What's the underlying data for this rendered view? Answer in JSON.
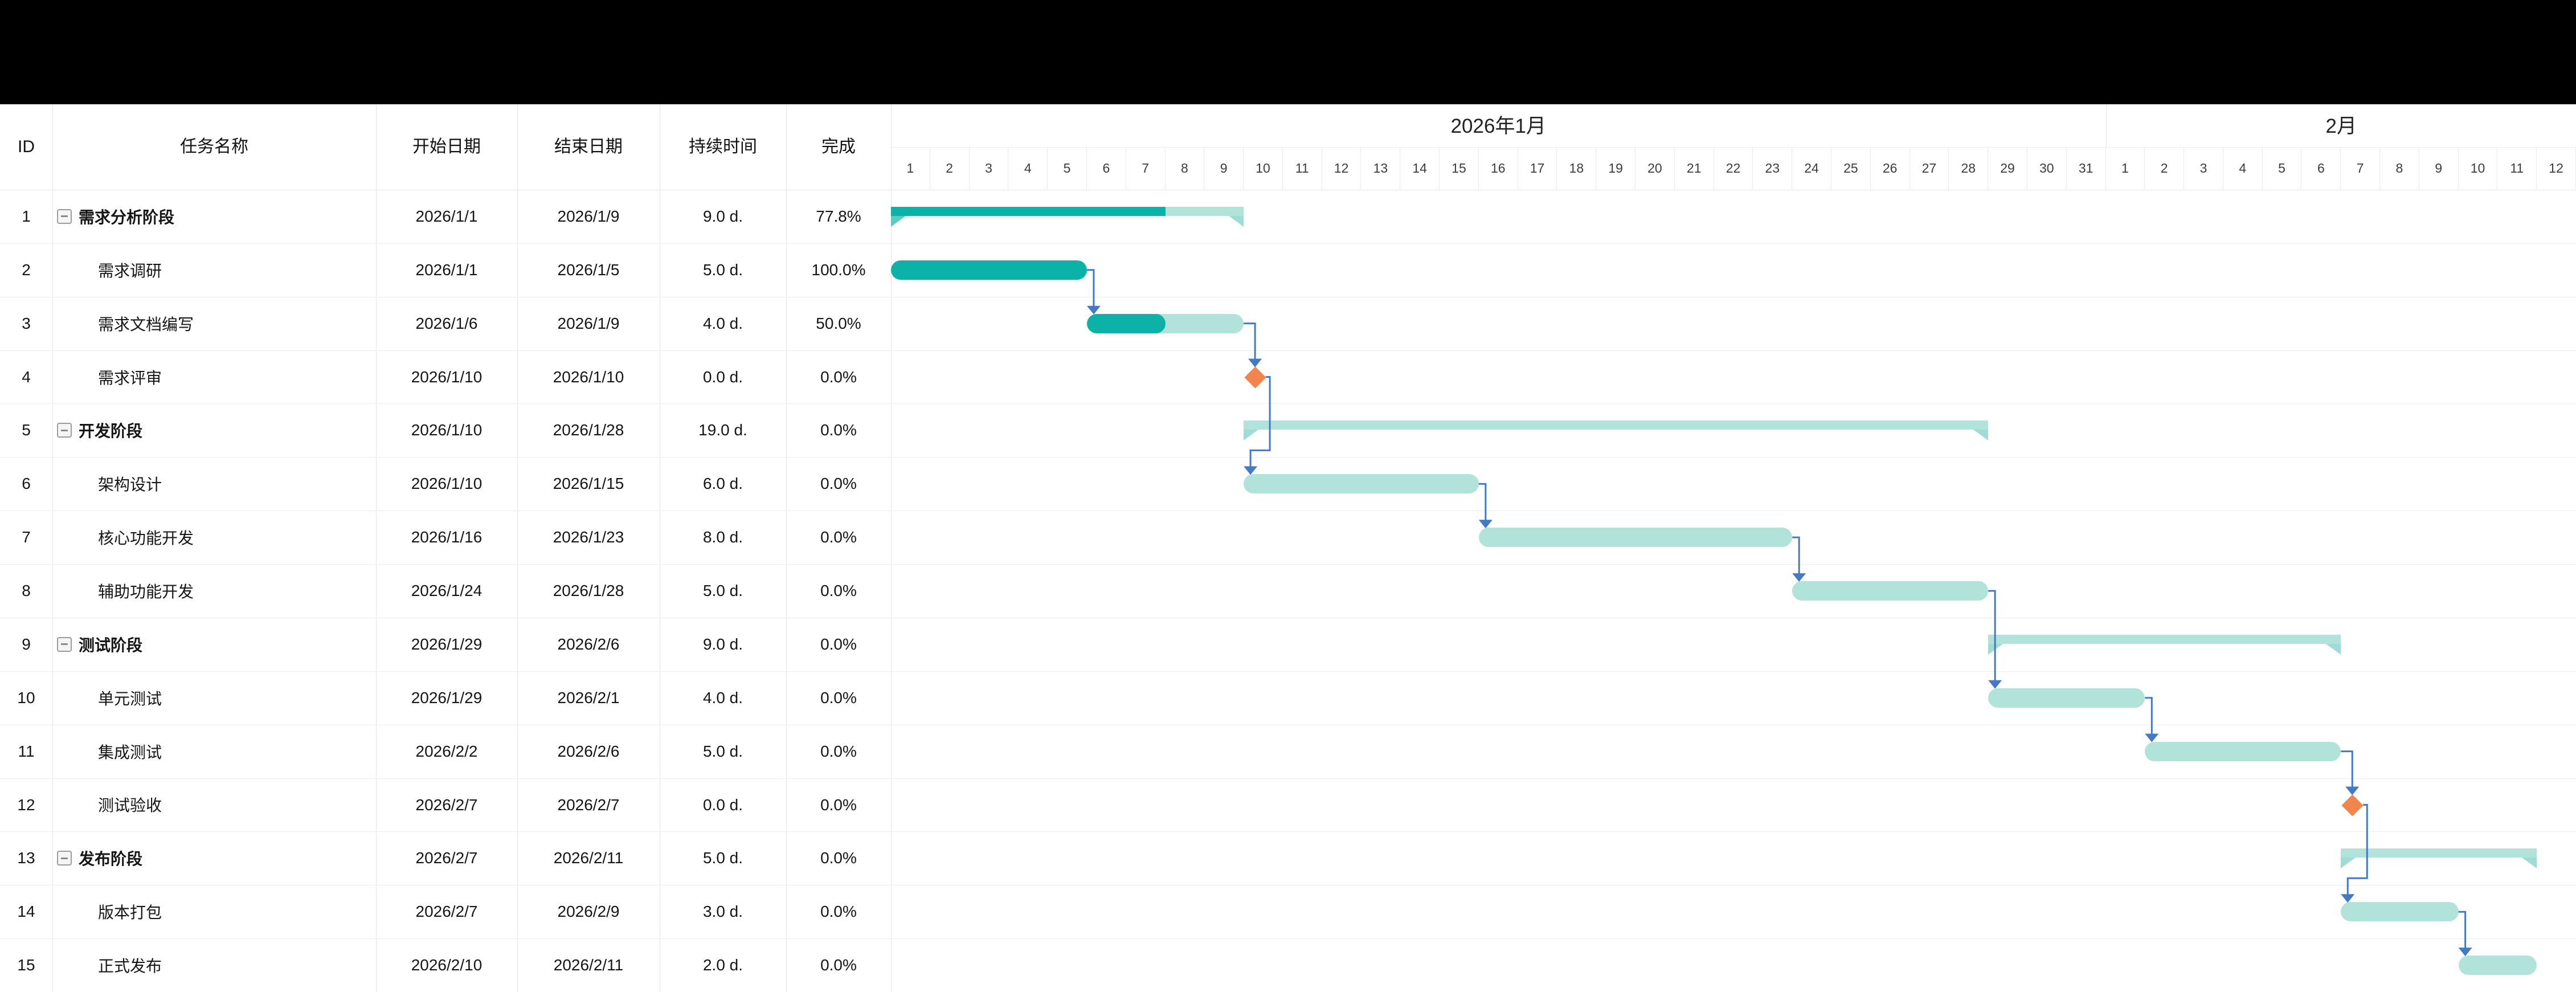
{
  "window": {
    "top_band": ""
  },
  "colors": {
    "band": "#000000",
    "task_fill": "#B2E3DB",
    "task_progress": "#0CB2A7",
    "summary_hang": "#9FDCD5",
    "summary_hang_done": "#5ECAC1",
    "milestone": "#F2854D",
    "connector": "#4479C4",
    "grid": "#ededed",
    "grid_col": "#e4e4e4"
  },
  "table": {
    "columns": [
      {
        "key": "id",
        "label": "ID"
      },
      {
        "key": "name",
        "label": "任务名称"
      },
      {
        "key": "start",
        "label": "开始日期"
      },
      {
        "key": "end",
        "label": "结束日期"
      },
      {
        "key": "duration",
        "label": "持续时间"
      },
      {
        "key": "percent",
        "label": "完成"
      }
    ]
  },
  "timeline": {
    "months": [
      {
        "label": "2026年1月",
        "days": 31
      },
      {
        "label": "2月",
        "days": 12
      }
    ]
  },
  "tasks": [
    {
      "id": 1,
      "name": "需求分析阶段",
      "type": "summary",
      "level": 0,
      "start": "2026/1/1",
      "end": "2026/1/9",
      "duration": "9.0 d.",
      "percent": "77.8%",
      "startDay": 1,
      "endDay": 9,
      "progress": 0.778
    },
    {
      "id": 2,
      "name": "需求调研",
      "type": "task",
      "level": 1,
      "start": "2026/1/1",
      "end": "2026/1/5",
      "duration": "5.0 d.",
      "percent": "100.0%",
      "startDay": 1,
      "endDay": 5,
      "progress": 1
    },
    {
      "id": 3,
      "name": "需求文档编写",
      "type": "task",
      "level": 1,
      "start": "2026/1/6",
      "end": "2026/1/9",
      "duration": "4.0 d.",
      "percent": "50.0%",
      "startDay": 6,
      "endDay": 9,
      "progress": 0.5
    },
    {
      "id": 4,
      "name": "需求评审",
      "type": "milestone",
      "level": 1,
      "start": "2026/1/10",
      "end": "2026/1/10",
      "duration": "0.0 d.",
      "percent": "0.0%",
      "startDay": 10,
      "endDay": 10,
      "progress": 0
    },
    {
      "id": 5,
      "name": "开发阶段",
      "type": "summary",
      "level": 0,
      "start": "2026/1/10",
      "end": "2026/1/28",
      "duration": "19.0 d.",
      "percent": "0.0%",
      "startDay": 10,
      "endDay": 28,
      "progress": 0
    },
    {
      "id": 6,
      "name": "架构设计",
      "type": "task",
      "level": 1,
      "start": "2026/1/10",
      "end": "2026/1/15",
      "duration": "6.0 d.",
      "percent": "0.0%",
      "startDay": 10,
      "endDay": 15,
      "progress": 0
    },
    {
      "id": 7,
      "name": "核心功能开发",
      "type": "task",
      "level": 1,
      "start": "2026/1/16",
      "end": "2026/1/23",
      "duration": "8.0 d.",
      "percent": "0.0%",
      "startDay": 16,
      "endDay": 23,
      "progress": 0
    },
    {
      "id": 8,
      "name": "辅助功能开发",
      "type": "task",
      "level": 1,
      "start": "2026/1/24",
      "end": "2026/1/28",
      "duration": "5.0 d.",
      "percent": "0.0%",
      "startDay": 24,
      "endDay": 28,
      "progress": 0
    },
    {
      "id": 9,
      "name": "测试阶段",
      "type": "summary",
      "level": 0,
      "start": "2026/1/29",
      "end": "2026/2/6",
      "duration": "9.0 d.",
      "percent": "0.0%",
      "startDay": 29,
      "endDay": 37,
      "progress": 0
    },
    {
      "id": 10,
      "name": "单元测试",
      "type": "task",
      "level": 1,
      "start": "2026/1/29",
      "end": "2026/2/1",
      "duration": "4.0 d.",
      "percent": "0.0%",
      "startDay": 29,
      "endDay": 32,
      "progress": 0
    },
    {
      "id": 11,
      "name": "集成测试",
      "type": "task",
      "level": 1,
      "start": "2026/2/2",
      "end": "2026/2/6",
      "duration": "5.0 d.",
      "percent": "0.0%",
      "startDay": 33,
      "endDay": 37,
      "progress": 0
    },
    {
      "id": 12,
      "name": "测试验收",
      "type": "milestone",
      "level": 1,
      "start": "2026/2/7",
      "end": "2026/2/7",
      "duration": "0.0 d.",
      "percent": "0.0%",
      "startDay": 38,
      "endDay": 38,
      "progress": 0
    },
    {
      "id": 13,
      "name": "发布阶段",
      "type": "summary",
      "level": 0,
      "start": "2026/2/7",
      "end": "2026/2/11",
      "duration": "5.0 d.",
      "percent": "0.0%",
      "startDay": 38,
      "endDay": 42,
      "progress": 0
    },
    {
      "id": 14,
      "name": "版本打包",
      "type": "task",
      "level": 1,
      "start": "2026/2/7",
      "end": "2026/2/9",
      "duration": "3.0 d.",
      "percent": "0.0%",
      "startDay": 38,
      "endDay": 40,
      "progress": 0
    },
    {
      "id": 15,
      "name": "正式发布",
      "type": "task",
      "level": 1,
      "start": "2026/2/10",
      "end": "2026/2/11",
      "duration": "2.0 d.",
      "percent": "0.0%",
      "startDay": 41,
      "endDay": 42,
      "progress": 0
    }
  ],
  "connectors": [
    {
      "from": 2,
      "to": 3
    },
    {
      "from": 3,
      "to": 4
    },
    {
      "from": 4,
      "to": 6
    },
    {
      "from": 6,
      "to": 7
    },
    {
      "from": 7,
      "to": 8
    },
    {
      "from": 8,
      "to": 10
    },
    {
      "from": 10,
      "to": 11
    },
    {
      "from": 11,
      "to": 12
    },
    {
      "from": 12,
      "to": 14
    },
    {
      "from": 14,
      "to": 15
    }
  ]
}
